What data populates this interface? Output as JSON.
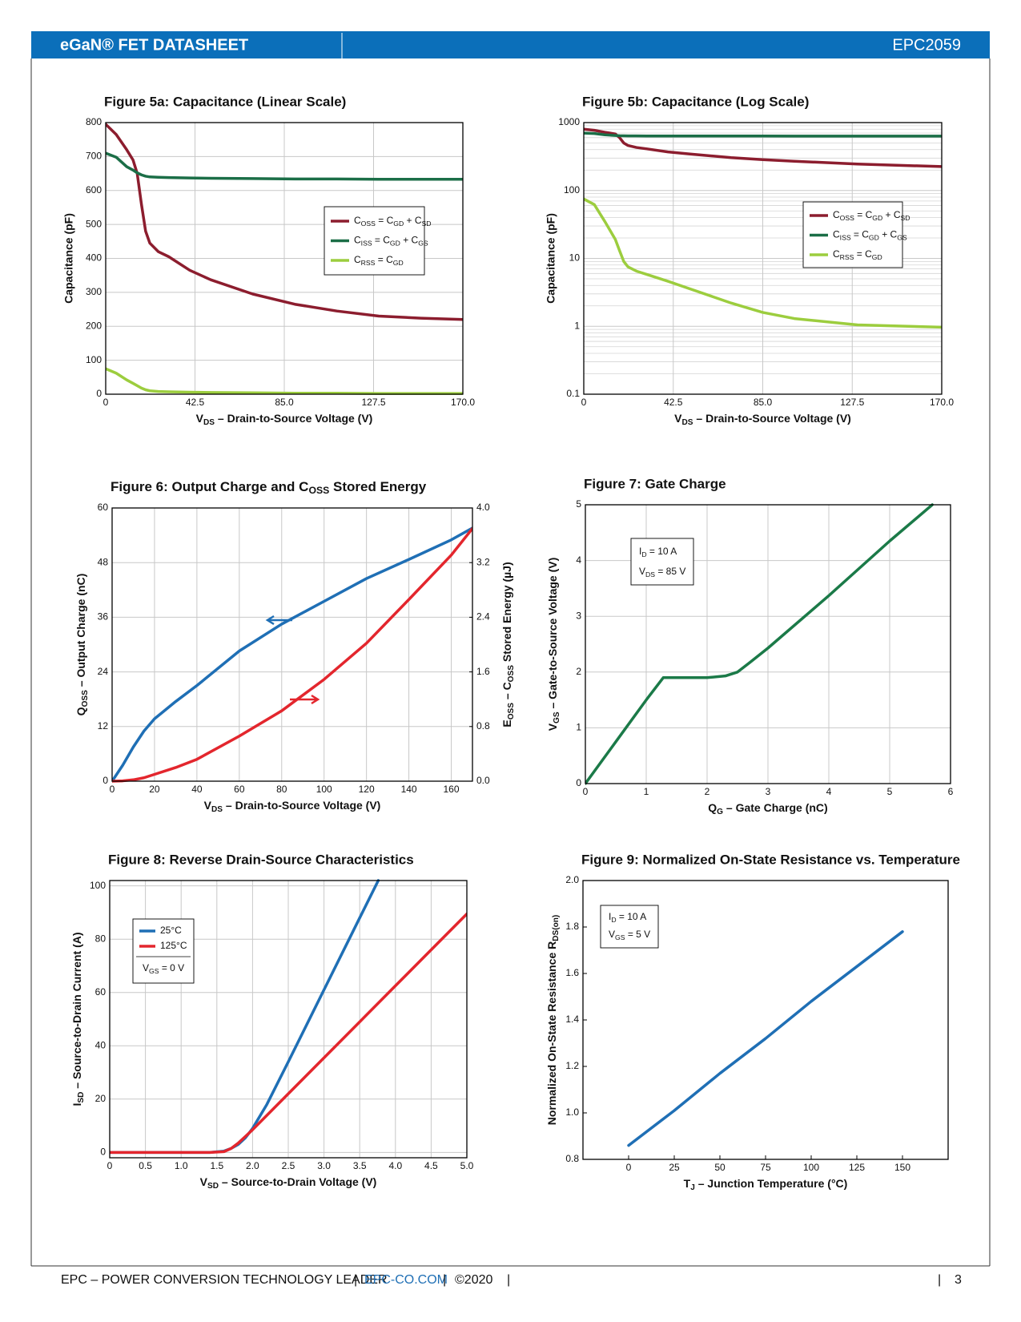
{
  "header": {
    "title": "eGaN® FET DATASHEET",
    "part_number": "EPC2059"
  },
  "footer": {
    "company": "EPC – POWER CONVERSION TECHNOLOGY LEADER",
    "separator": "|",
    "website": "EPC-CO.COM",
    "copyright": "©2020",
    "page": "3"
  },
  "chart_data": [
    {
      "type": "line",
      "title": "Figure 5a: Capacitance (Linear Scale)",
      "x_label": [
        {
          "t": "V"
        },
        {
          "sub": "DS"
        },
        {
          "t": " – Drain-to-Source Voltage (V)"
        }
      ],
      "y_label": "Capacitance (pF)",
      "xlim": [
        0,
        170
      ],
      "xticks": [
        0,
        42.5,
        {
          "value": 85,
          "label": "85.0"
        },
        127.5,
        {
          "value": 170,
          "label": "170.0"
        }
      ],
      "ylim": [
        0,
        800
      ],
      "yticks": [
        0,
        100,
        200,
        300,
        400,
        500,
        600,
        700,
        800
      ],
      "grid": true,
      "legend": "upper right",
      "x": [
        0,
        5,
        10,
        13,
        15,
        17,
        19,
        21,
        25,
        30,
        40,
        50,
        70,
        90,
        110,
        130,
        150,
        170
      ],
      "series": [
        {
          "name": [
            {
              "t": "C"
            },
            {
              "sub": "OSS"
            },
            {
              "t": " = C"
            },
            {
              "sub": "GD"
            },
            {
              "t": " + C"
            },
            {
              "sub": "SD"
            }
          ],
          "color": "#8c1d2e",
          "values": [
            795,
            765,
            720,
            690,
            650,
            560,
            480,
            445,
            420,
            405,
            365,
            337,
            295,
            265,
            245,
            230,
            224,
            220
          ]
        },
        {
          "name": [
            {
              "t": "C"
            },
            {
              "sub": "ISS"
            },
            {
              "t": " = C"
            },
            {
              "sub": "GD"
            },
            {
              "t": " + C"
            },
            {
              "sub": "GS"
            }
          ],
          "color": "#1b6e47",
          "values": [
            710,
            698,
            670,
            660,
            652,
            646,
            642,
            640,
            639,
            638,
            637,
            636,
            635,
            634,
            634,
            633,
            633,
            633
          ]
        },
        {
          "name": [
            {
              "t": "C"
            },
            {
              "sub": "RSS"
            },
            {
              "t": " = C"
            },
            {
              "sub": "GD"
            }
          ],
          "color": "#9ccd3e",
          "values": [
            75,
            62,
            42,
            32,
            25,
            18,
            13,
            10,
            8,
            7,
            6,
            5,
            4,
            3,
            3,
            2,
            2,
            2
          ]
        }
      ]
    },
    {
      "type": "line",
      "title": "Figure 5b: Capacitance (Log Scale)",
      "x_label": [
        {
          "t": "V"
        },
        {
          "sub": "DS"
        },
        {
          "t": " – Drain-to-Source Voltage (V)"
        }
      ],
      "y_label": "Capacitance (pF)",
      "xlim": [
        0,
        170
      ],
      "xticks": [
        0,
        42.5,
        {
          "value": 85,
          "label": "85.0"
        },
        127.5,
        {
          "value": 170,
          "label": "170.0"
        }
      ],
      "ylim": [
        0.1,
        1000
      ],
      "yticks": [
        0.1,
        1,
        10,
        100,
        1000
      ],
      "y_log": true,
      "grid": true,
      "legend": "upper right",
      "x": [
        0,
        5,
        10,
        15,
        17,
        19,
        21,
        25,
        30,
        40,
        50,
        70,
        85,
        100,
        130,
        170
      ],
      "series": [
        {
          "name": [
            {
              "t": "C"
            },
            {
              "sub": "OSS"
            },
            {
              "t": " = C"
            },
            {
              "sub": "GD"
            },
            {
              "t": " + C"
            },
            {
              "sub": "SD"
            }
          ],
          "color": "#8c1d2e",
          "values": [
            800,
            770,
            720,
            680,
            600,
            500,
            460,
            430,
            410,
            370,
            345,
            305,
            285,
            270,
            245,
            225
          ]
        },
        {
          "name": [
            {
              "t": "C"
            },
            {
              "sub": "ISS"
            },
            {
              "t": " = C"
            },
            {
              "sub": "GD"
            },
            {
              "t": " + C"
            },
            {
              "sub": "GS"
            }
          ],
          "color": "#1b6e47",
          "values": [
            700,
            690,
            660,
            645,
            640,
            638,
            637,
            636,
            635,
            635,
            634,
            634,
            634,
            633,
            633,
            633
          ]
        },
        {
          "name": [
            {
              "t": "C"
            },
            {
              "sub": "RSS"
            },
            {
              "t": " = C"
            },
            {
              "sub": "GD"
            }
          ],
          "color": "#9ccd3e",
          "values": [
            75,
            62,
            35,
            19,
            13,
            9,
            7.5,
            6.5,
            5.8,
            4.6,
            3.6,
            2.2,
            1.6,
            1.3,
            1.05,
            0.97
          ]
        }
      ]
    },
    {
      "type": "line",
      "title": [
        {
          "t": "Figure 6: Output Charge and C"
        },
        {
          "sub": "OSS"
        },
        {
          "t": " Stored Energy"
        }
      ],
      "x_label": [
        {
          "t": "V"
        },
        {
          "sub": "DS"
        },
        {
          "t": " – Drain-to-Source Voltage (V)"
        }
      ],
      "y_label": [
        {
          "t": "Q"
        },
        {
          "sub": "OSS"
        },
        {
          "t": " – Output Charge (nC)"
        }
      ],
      "y2_label": [
        {
          "t": "E"
        },
        {
          "sub": "OSS"
        },
        {
          "t": " – C"
        },
        {
          "sub": "OSS"
        },
        {
          "t": " Stored Energy (µJ)"
        }
      ],
      "xlim": [
        0,
        170
      ],
      "xticks": [
        0,
        20,
        40,
        60,
        80,
        100,
        120,
        140,
        160
      ],
      "ylim": [
        0,
        60
      ],
      "yticks": [
        0,
        12,
        24,
        36,
        48,
        60
      ],
      "y2lim": [
        0,
        4
      ],
      "y2ticks": [
        {
          "value": 0,
          "label": "0.0"
        },
        0.8,
        1.6,
        2.4,
        3.2,
        {
          "value": 4,
          "label": "4.0"
        }
      ],
      "grid": true,
      "x": [
        0,
        5,
        10,
        15,
        20,
        30,
        40,
        60,
        80,
        100,
        120,
        140,
        160,
        170
      ],
      "series": [
        {
          "color": "#1f6fb5",
          "values": [
            0,
            3.5,
            7.5,
            11,
            13.7,
            17.5,
            21,
            28.6,
            34.5,
            39.5,
            44.5,
            48.7,
            53,
            55.6
          ]
        },
        {
          "color": "#e3262d",
          "axis": "y2",
          "values": [
            0,
            0.005,
            0.02,
            0.05,
            0.1,
            0.2,
            0.32,
            0.66,
            1.03,
            1.49,
            2.02,
            2.66,
            3.31,
            3.7
          ]
        }
      ]
    },
    {
      "type": "line",
      "title": "Figure 7: Gate Charge",
      "x_label": [
        {
          "t": "Q"
        },
        {
          "sub": "G"
        },
        {
          "t": " – Gate Charge (nC)"
        }
      ],
      "y_label": [
        {
          "t": "V"
        },
        {
          "sub": "GS"
        },
        {
          "t": " – Gate-to-Source Voltage (V)"
        }
      ],
      "xlim": [
        0,
        6
      ],
      "xticks": [
        0,
        1,
        2,
        3,
        4,
        5,
        6
      ],
      "ylim": [
        0,
        5
      ],
      "yticks": [
        0,
        1,
        2,
        3,
        4,
        5
      ],
      "grid": true,
      "annotation": [
        [
          {
            "t": "I"
          },
          {
            "sub": "D"
          },
          {
            "t": " = 10 A"
          }
        ],
        [
          {
            "t": "V"
          },
          {
            "sub": "DS"
          },
          {
            "t": " = 85 V"
          }
        ]
      ],
      "x": [
        0,
        0.5,
        1,
        1.28,
        1.5,
        2,
        2.3,
        2.5,
        2.7,
        3,
        4,
        5,
        5.7
      ],
      "series": [
        {
          "color": "#1b7a48",
          "values": [
            0,
            0.75,
            1.5,
            1.9,
            1.9,
            1.9,
            1.93,
            2.0,
            2.17,
            2.43,
            3.37,
            4.35,
            5
          ]
        }
      ]
    },
    {
      "type": "line",
      "title": "Figure 8: Reverse Drain-Source Characteristics",
      "x_label": [
        {
          "t": "V"
        },
        {
          "sub": "SD"
        },
        {
          "t": " – Source-to-Drain Voltage (V)"
        }
      ],
      "y_label": [
        {
          "t": "I"
        },
        {
          "sub": "SD"
        },
        {
          "t": " – Source-to-Drain Current (A)"
        }
      ],
      "xlim": [
        0,
        5
      ],
      "xticks": [
        0,
        0.5,
        {
          "value": 1,
          "label": "1.0"
        },
        1.5,
        {
          "value": 2,
          "label": "2.0"
        },
        2.5,
        {
          "value": 3,
          "label": "3.0"
        },
        3.5,
        {
          "value": 4,
          "label": "4.0"
        },
        4.5,
        {
          "value": 5,
          "label": "5.0"
        }
      ],
      "ylim": [
        -2,
        102
      ],
      "yticks": [
        0,
        20,
        40,
        60,
        80,
        100
      ],
      "grid": true,
      "legend": "upper left",
      "legend_note": [
        {
          "t": "V"
        },
        {
          "sub": "GS"
        },
        {
          "t": " = 0 V"
        }
      ],
      "series": [
        {
          "name": "25°C",
          "color": "#1f6fb5",
          "x": [
            0,
            1,
            1.4,
            1.6,
            1.7,
            1.8,
            1.9,
            2.0,
            2.2,
            2.5,
            3.0,
            3.5,
            3.76
          ],
          "values": [
            0,
            0,
            0,
            0.5,
            1.5,
            3,
            5.5,
            9,
            18,
            34,
            61,
            88,
            102
          ]
        },
        {
          "name": "125°C",
          "color": "#e3262d",
          "x": [
            0,
            1,
            1.4,
            1.6,
            1.7,
            1.8,
            1.9,
            2.0,
            2.5,
            3.0,
            3.5,
            4.0,
            4.5,
            5.0
          ],
          "values": [
            0,
            0,
            0,
            0.3,
            1.5,
            3.5,
            6,
            8.5,
            22,
            35.5,
            49,
            62.5,
            76,
            89.5
          ]
        }
      ]
    },
    {
      "type": "line",
      "title": "Figure 9: Normalized On-State Resistance vs. Temperature",
      "x_label": [
        {
          "t": "T"
        },
        {
          "sub": "J"
        },
        {
          "t": " – Junction Temperature (°C)"
        }
      ],
      "y_label": [
        {
          "t": "Normalized On-State Resistance R"
        },
        {
          "sub": "DS(on)"
        }
      ],
      "xlim": [
        -25,
        175
      ],
      "xticks": [
        0,
        25,
        50,
        75,
        100,
        125,
        150
      ],
      "ylim": [
        0.8,
        2.0
      ],
      "yticks": [
        0.8,
        {
          "value": 1,
          "label": "1.0"
        },
        1.2,
        1.4,
        1.6,
        1.8,
        {
          "value": 2,
          "label": "2.0"
        }
      ],
      "grid": false,
      "annotation": [
        [
          {
            "t": "I"
          },
          {
            "sub": "D"
          },
          {
            "t": " = 10 A"
          }
        ],
        [
          {
            "t": "V"
          },
          {
            "sub": "GS"
          },
          {
            "t": " = 5 V"
          }
        ]
      ],
      "x": [
        0,
        25,
        50,
        75,
        100,
        125,
        150
      ],
      "series": [
        {
          "color": "#1f6fb5",
          "values": [
            0.86,
            1.01,
            1.17,
            1.32,
            1.48,
            1.63,
            1.78
          ]
        }
      ]
    }
  ]
}
